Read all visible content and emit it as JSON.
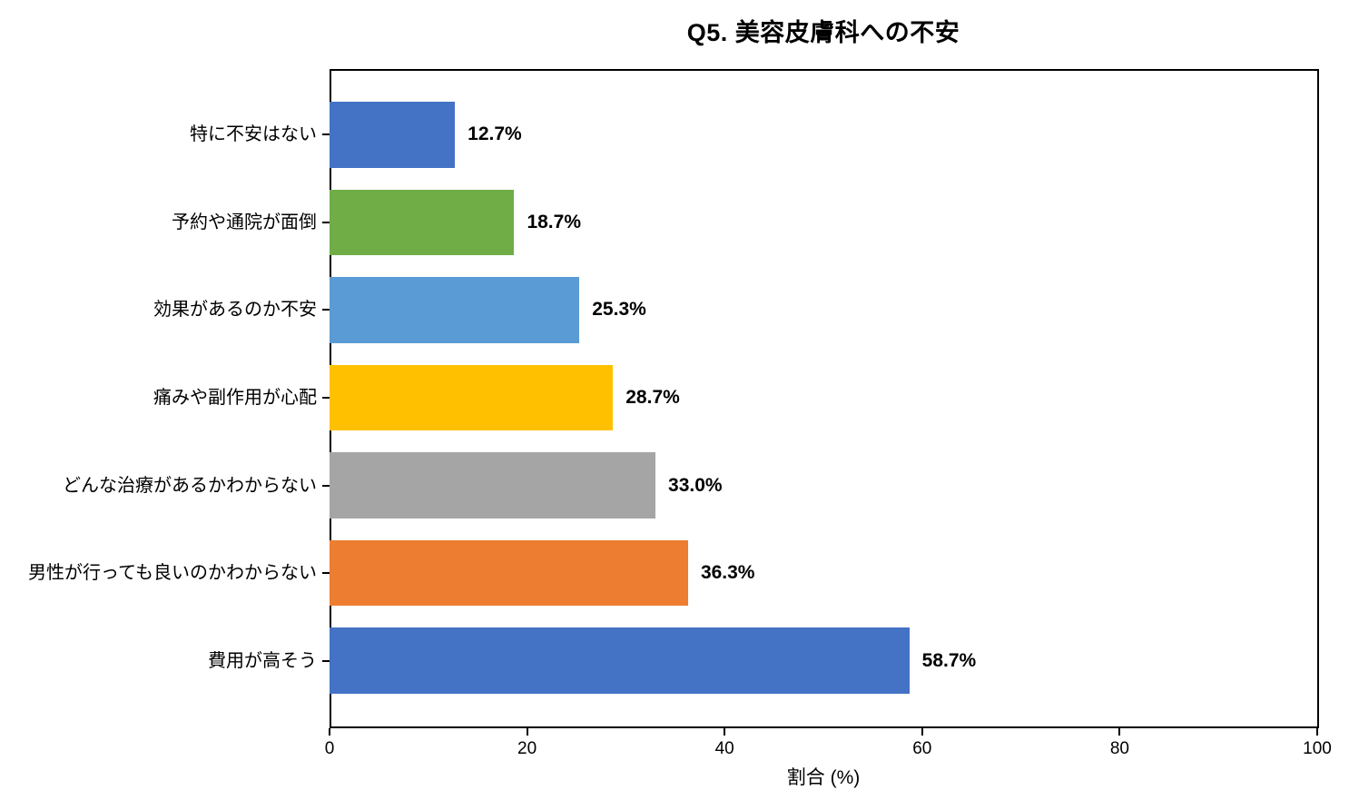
{
  "chart_data": {
    "type": "bar",
    "orientation": "horizontal",
    "title": "Q5. 美容皮膚科への不安",
    "xlabel": "割合 (%)",
    "ylabel": "",
    "xlim": [
      0,
      100
    ],
    "x_ticks": [
      "0",
      "20",
      "40",
      "60",
      "80",
      "100"
    ],
    "x_tick_values": [
      0,
      20,
      40,
      60,
      80,
      100
    ],
    "grid": false,
    "legend": "none",
    "categories_top_to_bottom": [
      "特に不安はない",
      "予約や通院が面倒",
      "効果があるのか不安",
      "痛みや副作用が心配",
      "どんな治療があるかわからない",
      "男性が行っても良いのかわからない",
      "費用が高そう"
    ],
    "values": [
      12.7,
      18.7,
      25.3,
      28.7,
      33.0,
      36.3,
      58.7
    ],
    "value_labels": [
      "12.7%",
      "18.7%",
      "25.3%",
      "28.7%",
      "33.0%",
      "36.3%",
      "58.7%"
    ],
    "bar_colors": [
      "#4472C4",
      "#70AD47",
      "#5B9BD5",
      "#FFC000",
      "#A5A5A5",
      "#ED7D31",
      "#4472C4"
    ]
  },
  "colors": {
    "background": "#FFFFFF",
    "axis": "#000000",
    "text": "#000000"
  }
}
